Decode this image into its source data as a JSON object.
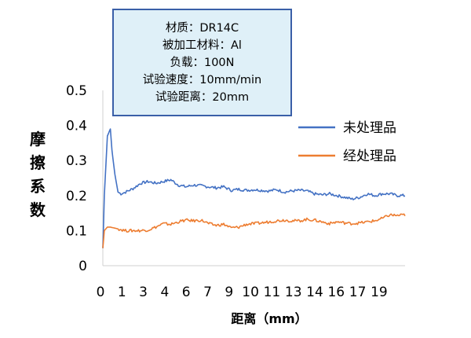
{
  "info_box": {
    "lines": [
      "材质：DR14C",
      "被加工材料：Al",
      "负载：100N",
      "试验速度：10mm/min",
      "试验距离：20mm"
    ]
  },
  "chart_data": {
    "type": "line",
    "title": "",
    "xlabel": "距离（mm）",
    "ylabel": "摩擦系数",
    "xlim": [
      0,
      20
    ],
    "ylim": [
      0,
      0.5
    ],
    "yticks": [
      "0",
      "0.1",
      "0.2",
      "0.3",
      "0.4",
      "0.5"
    ],
    "xticks": [
      "0",
      "1",
      "3",
      "4",
      "6",
      "7",
      "9",
      "10",
      "11",
      "13",
      "14",
      "16",
      "17",
      "19"
    ],
    "grid": false,
    "legend_position": "right",
    "series": [
      {
        "name": "未处理品",
        "color": "#4472c4",
        "x": [
          0,
          0.1,
          0.3,
          0.5,
          0.6,
          0.8,
          1.0,
          1.2,
          1.5,
          2,
          2.5,
          3,
          3.5,
          4,
          4.5,
          5,
          5.5,
          6,
          6.5,
          7,
          7.5,
          8,
          8.5,
          9,
          9.5,
          10,
          10.5,
          11,
          11.5,
          12,
          12.5,
          13,
          13.5,
          14,
          14.5,
          15,
          15.5,
          16,
          16.5,
          17,
          17.5,
          18,
          18.5,
          19,
          19.5,
          20
        ],
        "y": [
          0.05,
          0.2,
          0.37,
          0.39,
          0.33,
          0.26,
          0.21,
          0.205,
          0.21,
          0.22,
          0.235,
          0.24,
          0.235,
          0.24,
          0.245,
          0.23,
          0.225,
          0.23,
          0.228,
          0.225,
          0.222,
          0.225,
          0.215,
          0.218,
          0.215,
          0.217,
          0.215,
          0.213,
          0.217,
          0.21,
          0.213,
          0.215,
          0.213,
          0.205,
          0.202,
          0.205,
          0.2,
          0.195,
          0.19,
          0.195,
          0.205,
          0.2,
          0.205,
          0.205,
          0.2,
          0.2
        ]
      },
      {
        "name": "经处理品",
        "color": "#ed7d31",
        "x": [
          0,
          0.1,
          0.3,
          0.5,
          1.0,
          1.5,
          2,
          2.5,
          3,
          3.5,
          4,
          4.5,
          5,
          5.5,
          6,
          6.5,
          7,
          7.5,
          8,
          8.5,
          9,
          9.5,
          10,
          10.5,
          11,
          11.5,
          12,
          12.5,
          13,
          13.5,
          14,
          14.5,
          15,
          15.5,
          16,
          16.5,
          17,
          17.5,
          18,
          18.5,
          19,
          19.5,
          20
        ],
        "y": [
          0.05,
          0.1,
          0.11,
          0.11,
          0.105,
          0.1,
          0.1,
          0.1,
          0.102,
          0.11,
          0.12,
          0.118,
          0.125,
          0.13,
          0.128,
          0.13,
          0.12,
          0.115,
          0.118,
          0.108,
          0.11,
          0.118,
          0.12,
          0.122,
          0.125,
          0.128,
          0.13,
          0.128,
          0.128,
          0.132,
          0.13,
          0.125,
          0.12,
          0.125,
          0.122,
          0.12,
          0.122,
          0.125,
          0.128,
          0.135,
          0.145,
          0.143,
          0.145
        ]
      }
    ]
  }
}
